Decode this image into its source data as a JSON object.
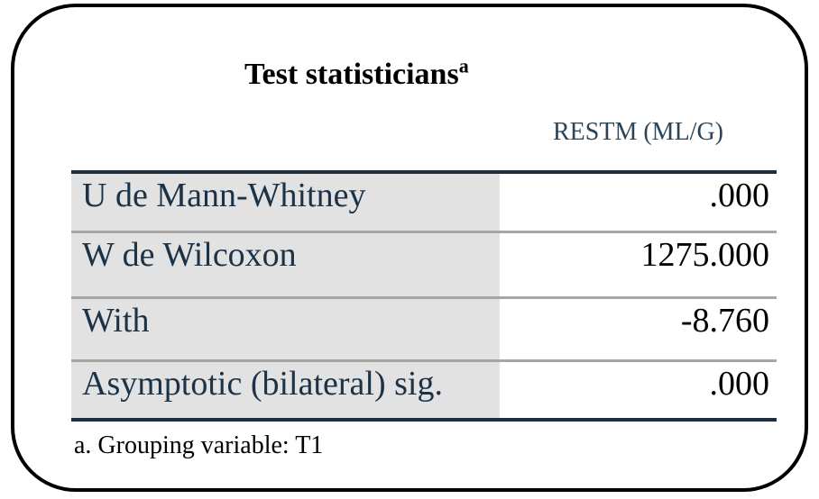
{
  "title": {
    "text": "Test statisticians",
    "superscript": "a"
  },
  "table": {
    "value_column_header": "RESTM (ML/G)",
    "rows": [
      {
        "label": "U de Mann-Whitney",
        "value": ".000"
      },
      {
        "label": "W de Wilcoxon",
        "value": "1275.000"
      },
      {
        "label": "With",
        "value": "-8.760"
      },
      {
        "label": "Asymptotic (bilateral) sig.",
        "value": ".000"
      }
    ]
  },
  "footnote": "a. Grouping variable: T1",
  "colors": {
    "frame_border": "#000000",
    "heavy_rule": "#1b2f40",
    "row_separator": "#a6a6a6",
    "label_cell_background": "#e2e2e2",
    "label_text": "#1c3246",
    "header_text": "#2a4459",
    "value_text": "#000000"
  }
}
